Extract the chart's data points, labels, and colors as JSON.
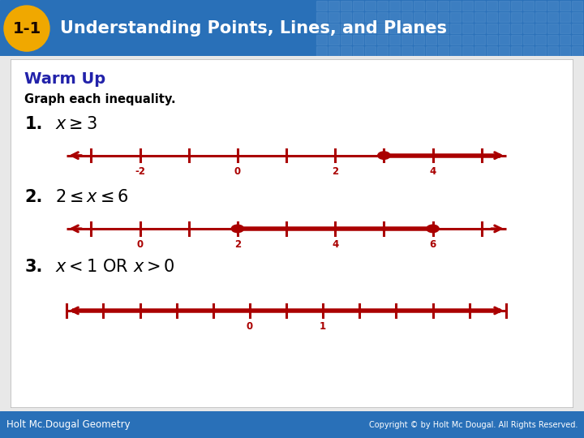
{
  "title": "Understanding Points, Lines, and Planes",
  "title_badge": "1-1",
  "header_bg": "#2970b8",
  "badge_bg": "#f0a800",
  "warm_up_text": "Warm Up",
  "warm_up_color": "#2222aa",
  "subtitle": "Graph each inequality.",
  "line_color": "#aa0000",
  "number_label_color": "#aa0000",
  "bg_color": "#e8e8e8",
  "footer_bg": "#2970b8",
  "footer_left": "Holt Mc.Dougal Geometry",
  "footer_right": "Copyright © by Holt Mc Dougal. All Rights Reserved."
}
